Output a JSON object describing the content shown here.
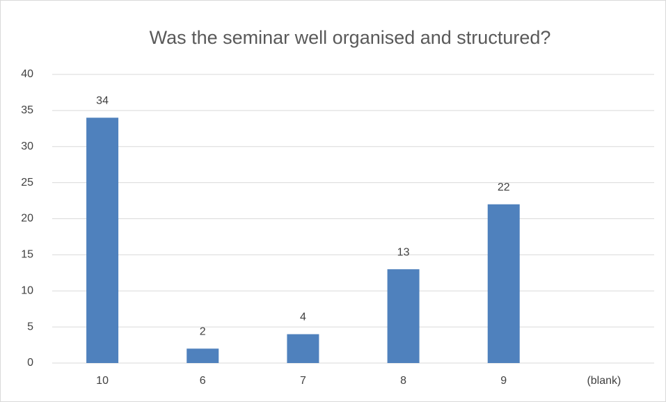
{
  "chart_data": {
    "type": "bar",
    "title": "Was the seminar well organised and structured?",
    "categories": [
      "10",
      "6",
      "7",
      "8",
      "9",
      "(blank)"
    ],
    "values": [
      34,
      2,
      4,
      13,
      22,
      null
    ],
    "color": "#4f81bd",
    "ylim": [
      0,
      40
    ],
    "yticks": [
      0,
      5,
      10,
      15,
      20,
      25,
      30,
      35,
      40
    ],
    "grid": true
  }
}
